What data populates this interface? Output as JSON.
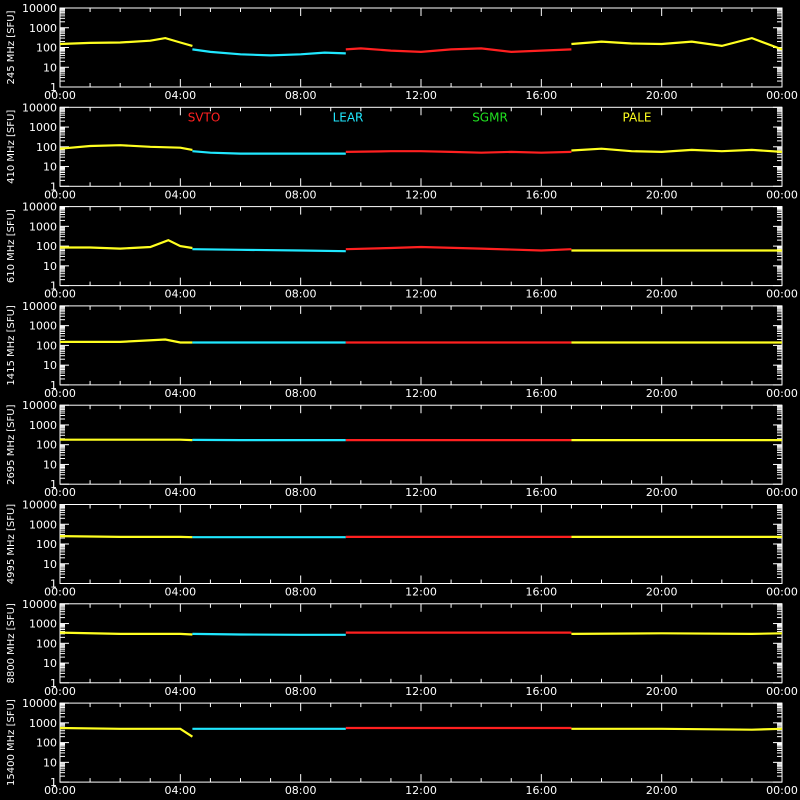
{
  "chart_data": {
    "type": "line",
    "x_unit": "UT hours",
    "xlim": [
      0,
      24
    ],
    "x_ticks": [
      0,
      4,
      8,
      12,
      16,
      20,
      24
    ],
    "x_tick_labels": [
      "00:00",
      "04:00",
      "08:00",
      "12:00",
      "16:00",
      "20:00",
      "00:00"
    ],
    "ylim": [
      1,
      10000
    ],
    "y_scale": "log",
    "y_ticks": [
      1,
      10,
      100,
      1000,
      10000
    ],
    "y_tick_labels": [
      "1",
      "10",
      "100",
      "1000",
      "10000"
    ],
    "legend": [
      {
        "name": "SVTO",
        "color": "#ff2020"
      },
      {
        "name": "LEAR",
        "color": "#20e8ff"
      },
      {
        "name": "SGMR",
        "color": "#20e020"
      },
      {
        "name": "PALE",
        "color": "#ffff20"
      }
    ],
    "legend_placement": "inside second panel, top",
    "panels": [
      {
        "ylabel": "245 MHz [SFU]",
        "series": [
          {
            "name": "PALE",
            "x": [
              0,
              1,
              2,
              3,
              3.5,
              4,
              4.4
            ],
            "y": [
              150,
              170,
              180,
              220,
              300,
              180,
              120
            ]
          },
          {
            "name": "LEAR",
            "x": [
              4.4,
              5,
              6,
              7,
              8,
              8.8,
              9.5
            ],
            "y": [
              80,
              60,
              45,
              40,
              45,
              55,
              50
            ]
          },
          {
            "name": "SVTO",
            "x": [
              9.5,
              10,
              11,
              12,
              13,
              14,
              15,
              16,
              17
            ],
            "y": [
              80,
              90,
              70,
              60,
              80,
              90,
              60,
              70,
              80
            ]
          },
          {
            "name": "PALE",
            "x": [
              17,
              18,
              19,
              20,
              21,
              22,
              23,
              24
            ],
            "y": [
              150,
              200,
              160,
              150,
              200,
              120,
              300,
              80
            ]
          }
        ]
      },
      {
        "ylabel": "410 MHz [SFU]",
        "series": [
          {
            "name": "PALE",
            "x": [
              0,
              1,
              2,
              3,
              4,
              4.4
            ],
            "y": [
              80,
              110,
              120,
              100,
              90,
              70
            ]
          },
          {
            "name": "LEAR",
            "x": [
              4.4,
              5,
              6,
              7,
              8,
              9,
              9.5
            ],
            "y": [
              60,
              50,
              45,
              45,
              45,
              45,
              45
            ]
          },
          {
            "name": "SVTO",
            "x": [
              9.5,
              11,
              12,
              13,
              14,
              15,
              16,
              17
            ],
            "y": [
              55,
              60,
              60,
              55,
              50,
              55,
              50,
              55
            ]
          },
          {
            "name": "PALE",
            "x": [
              17,
              18,
              19,
              20,
              21,
              22,
              23,
              24
            ],
            "y": [
              65,
              80,
              60,
              55,
              70,
              60,
              70,
              55
            ]
          }
        ]
      },
      {
        "ylabel": "610 MHz [SFU]",
        "series": [
          {
            "name": "PALE",
            "x": [
              0,
              1,
              2,
              3,
              3.6,
              4,
              4.4
            ],
            "y": [
              85,
              85,
              75,
              90,
              200,
              100,
              80
            ]
          },
          {
            "name": "LEAR",
            "x": [
              4.4,
              6,
              8,
              9.5
            ],
            "y": [
              70,
              65,
              60,
              55
            ]
          },
          {
            "name": "SVTO",
            "x": [
              9.5,
              11,
              12,
              14,
              16,
              17
            ],
            "y": [
              70,
              80,
              90,
              75,
              60,
              70
            ]
          },
          {
            "name": "PALE",
            "x": [
              17,
              18,
              20,
              22,
              24
            ],
            "y": [
              60,
              60,
              60,
              60,
              60
            ]
          }
        ]
      },
      {
        "ylabel": "1415 MHz [SFU]",
        "series": [
          {
            "name": "PALE",
            "x": [
              0,
              2,
              3.5,
              4,
              4.4
            ],
            "y": [
              150,
              150,
              200,
              140,
              140
            ]
          },
          {
            "name": "LEAR",
            "x": [
              4.4,
              6,
              8,
              9.5
            ],
            "y": [
              140,
              140,
              140,
              140
            ]
          },
          {
            "name": "SVTO",
            "x": [
              9.5,
              12,
              14,
              16,
              17
            ],
            "y": [
              140,
              140,
              140,
              140,
              140
            ]
          },
          {
            "name": "PALE",
            "x": [
              17,
              19,
              21,
              24
            ],
            "y": [
              140,
              140,
              140,
              140
            ]
          }
        ]
      },
      {
        "ylabel": "2695 MHz [SFU]",
        "series": [
          {
            "name": "PALE",
            "x": [
              0,
              2,
              4,
              4.4
            ],
            "y": [
              180,
              180,
              180,
              170
            ]
          },
          {
            "name": "LEAR",
            "x": [
              4.4,
              6,
              8,
              9.5
            ],
            "y": [
              175,
              170,
              170,
              170
            ]
          },
          {
            "name": "SVTO",
            "x": [
              9.5,
              12,
              14,
              16,
              17
            ],
            "y": [
              170,
              170,
              170,
              170,
              170
            ]
          },
          {
            "name": "PALE",
            "x": [
              17,
              20,
              24
            ],
            "y": [
              170,
              170,
              170
            ]
          }
        ]
      },
      {
        "ylabel": "4995 MHz [SFU]",
        "series": [
          {
            "name": "PALE",
            "x": [
              0,
              2,
              4,
              4.4
            ],
            "y": [
              250,
              230,
              230,
              220
            ]
          },
          {
            "name": "LEAR",
            "x": [
              4.4,
              6,
              8,
              9.5
            ],
            "y": [
              220,
              220,
              220,
              220
            ]
          },
          {
            "name": "SVTO",
            "x": [
              9.5,
              12,
              14,
              16,
              17
            ],
            "y": [
              230,
              230,
              230,
              230,
              230
            ]
          },
          {
            "name": "PALE",
            "x": [
              17,
              20,
              24
            ],
            "y": [
              230,
              230,
              230
            ]
          }
        ]
      },
      {
        "ylabel": "8800 MHz [SFU]",
        "series": [
          {
            "name": "PALE",
            "x": [
              0,
              2,
              4,
              4.4
            ],
            "y": [
              350,
              300,
              300,
              280
            ]
          },
          {
            "name": "LEAR",
            "x": [
              4.4,
              6,
              8,
              9.5
            ],
            "y": [
              300,
              280,
              270,
              270
            ]
          },
          {
            "name": "SVTO",
            "x": [
              9.5,
              12,
              14,
              16,
              17
            ],
            "y": [
              350,
              350,
              350,
              350,
              350
            ]
          },
          {
            "name": "PALE",
            "x": [
              17,
              20,
              23,
              24
            ],
            "y": [
              300,
              320,
              300,
              320
            ]
          }
        ]
      },
      {
        "ylabel": "15400 MHz [SFU]",
        "series": [
          {
            "name": "PALE",
            "x": [
              0,
              2,
              4,
              4.4
            ],
            "y": [
              550,
              500,
              500,
              200
            ]
          },
          {
            "name": "LEAR",
            "x": [
              4.4,
              6,
              8,
              9.5
            ],
            "y": [
              500,
              500,
              500,
              500
            ]
          },
          {
            "name": "SVTO",
            "x": [
              9.5,
              12,
              14,
              16,
              17
            ],
            "y": [
              550,
              550,
              550,
              550,
              550
            ]
          },
          {
            "name": "PALE",
            "x": [
              17,
              20,
              23,
              24
            ],
            "y": [
              500,
              500,
              450,
              500
            ]
          }
        ]
      }
    ]
  }
}
